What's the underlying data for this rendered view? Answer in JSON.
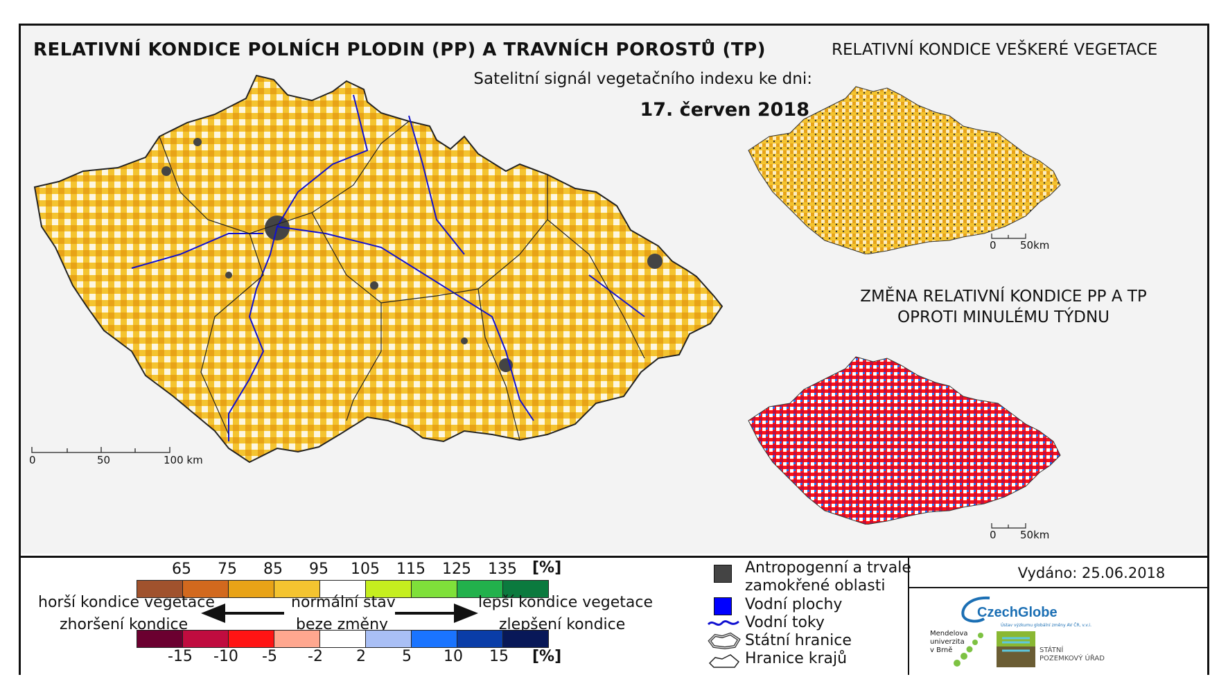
{
  "header": {
    "title": "RELATIVNÍ KONDICE POLNÍCH PLODIN (PP) A TRAVNÍCH POROSTŮ (TP)",
    "subtitle": "Satelitní signál vegetačního indexu ke dni:",
    "date": "17. červen 2018",
    "title_right": "RELATIVNÍ KONDICE VEŠKERÉ VEGETACE",
    "change_title_line1": "ZMĚNA RELATIVNÍ KONDICE PP A TP",
    "change_title_line2": "OPROTI MINULÉMU TÝDNU"
  },
  "scale_main": {
    "ticks": [
      "0",
      "50",
      "100 km"
    ]
  },
  "scale_small": {
    "ticks": [
      "0",
      "50km"
    ]
  },
  "legend_condition": {
    "unit": "[%]",
    "ticks": [
      "65",
      "75",
      "85",
      "95",
      "105",
      "115",
      "125",
      "135"
    ],
    "colors": [
      "#a0522d",
      "#d2691e",
      "#e8a317",
      "#f4c430",
      "#ffffff",
      "#c5ee1f",
      "#7fe03a",
      "#22b14c",
      "#0b7a3e"
    ],
    "left_line1": "horší kondice vegetace",
    "left_line2": "zhoršení kondice",
    "center_line1": "normální stav",
    "center_line2": "beze změny",
    "right_line1": "lepší kondice vegetace",
    "right_line2": "zlepšení kondice"
  },
  "legend_change": {
    "unit": "[%]",
    "ticks": [
      "-15",
      "-10",
      "-5",
      "-2",
      "2",
      "5",
      "10",
      "15"
    ],
    "colors": [
      "#6b0030",
      "#c00c3f",
      "#ff1414",
      "#ffa78f",
      "#ffffff",
      "#a9bff5",
      "#1a74ff",
      "#0a3da8",
      "#081858"
    ]
  },
  "symbols": {
    "anthro_line1": "Antropogenní a trvale",
    "anthro_line2": "zamokřené oblasti",
    "water_bodies": "Vodní plochy",
    "rivers": "Vodní toky",
    "state_border": "Státní hranice",
    "region_border": "Hranice krajů"
  },
  "issued": "Vydáno: 25.06.2018",
  "logos": {
    "czechglobe": "CzechGlobe",
    "czechglobe_sub": "Ústav výzkumu globální změny AV ČR, v.v.i.",
    "mendel_line1": "Mendelova",
    "mendel_line2": "univerzita",
    "mendel_line3": "v Brně",
    "spu_line1": "STÁTNÍ",
    "spu_line2": "POZEMKOVÝ ÚŘAD"
  },
  "colors": {
    "anthro": "#444444",
    "water": "#0000ff",
    "river": "#1010d0"
  }
}
